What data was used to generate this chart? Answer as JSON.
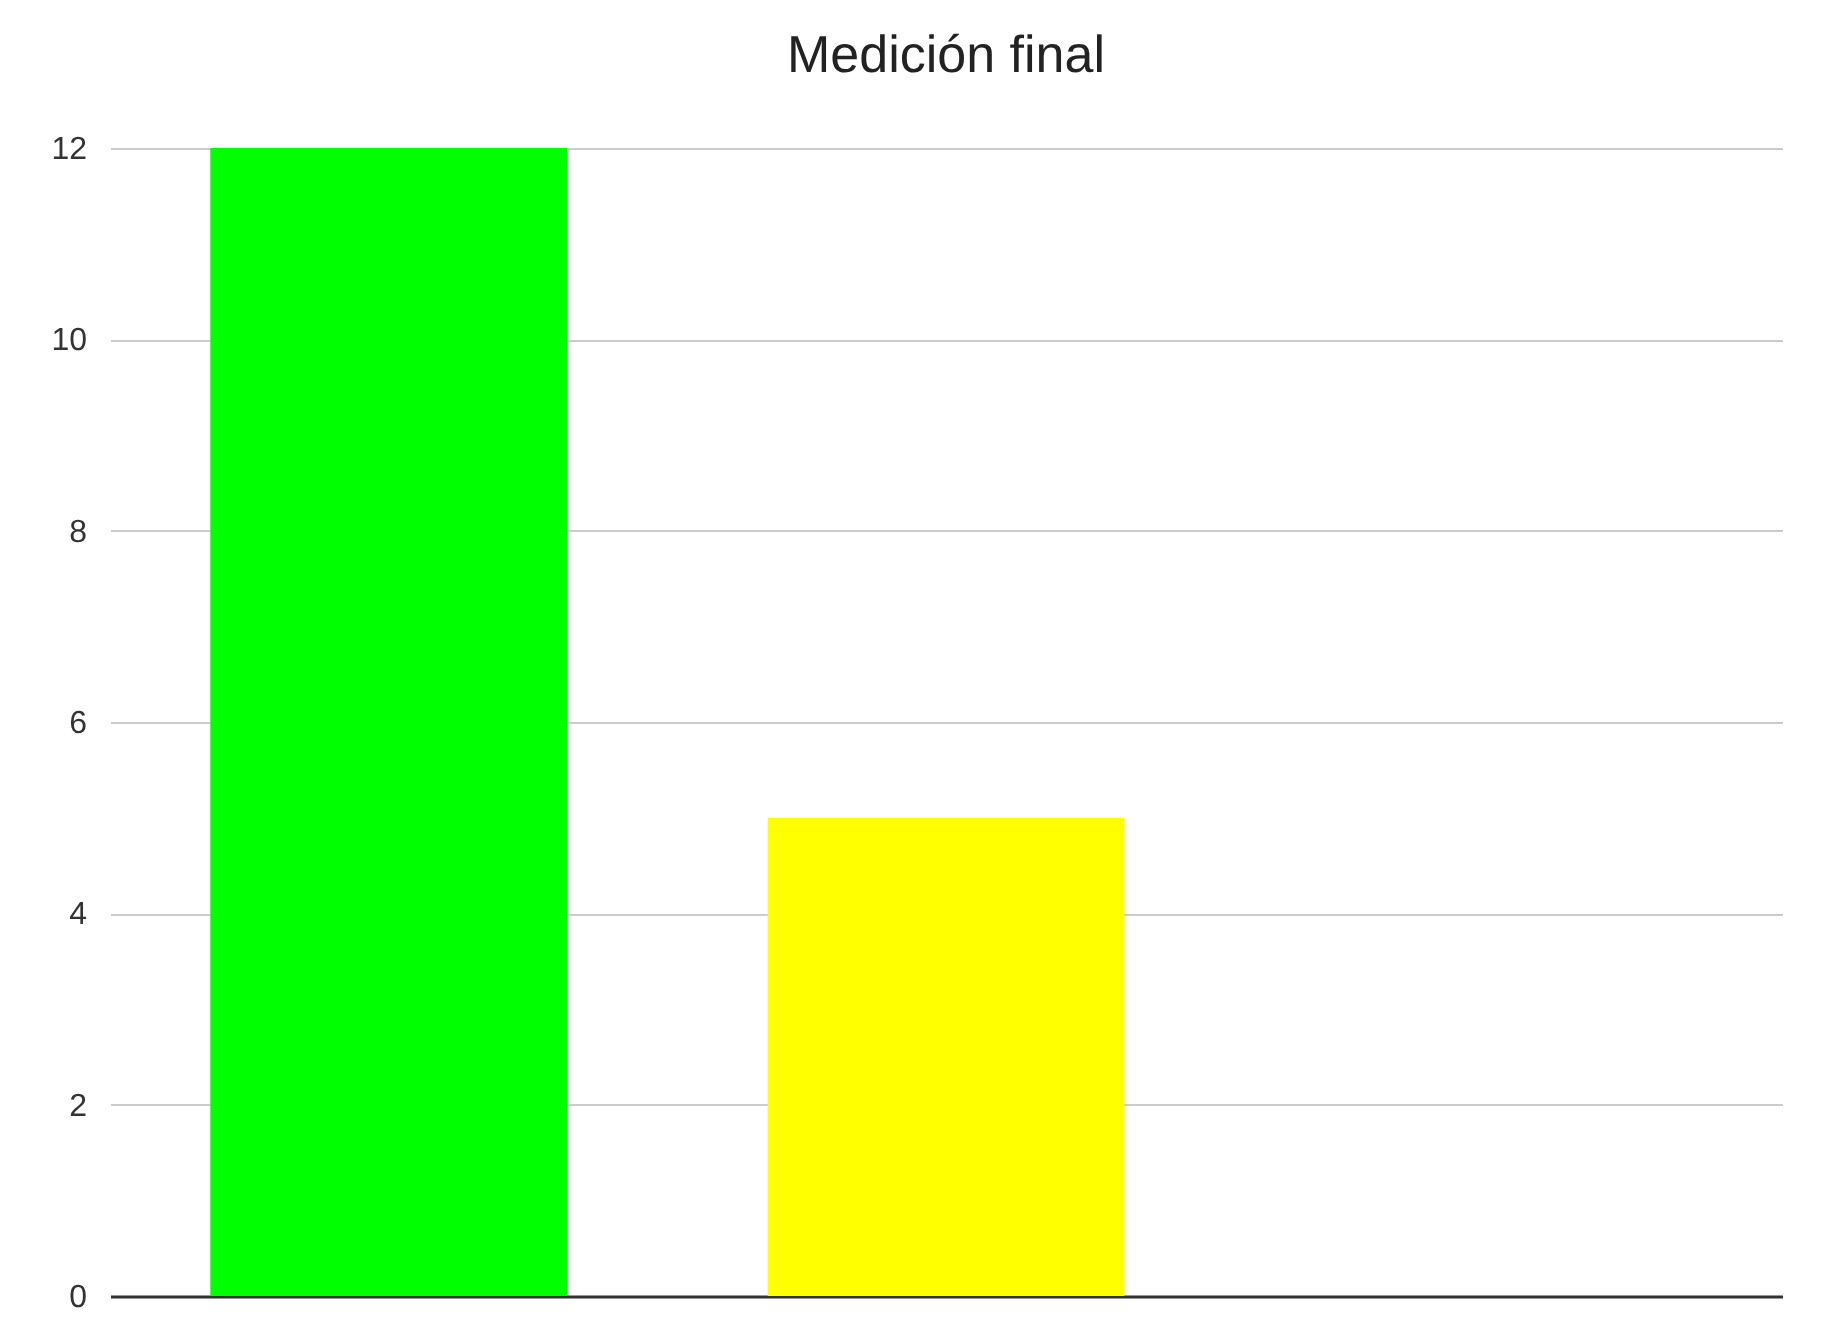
{
  "chart_data": {
    "type": "bar",
    "title": "Medición final",
    "categories": [
      null,
      null,
      null
    ],
    "values": [
      12,
      5,
      null
    ],
    "colors": [
      "#00ff00",
      "#ffff00",
      "#4285f4"
    ],
    "ylim": [
      0,
      12
    ],
    "yticks": [
      0,
      2,
      4,
      6,
      8,
      10,
      12
    ],
    "grid": "y",
    "tick_labels": "y",
    "legend": false
  }
}
